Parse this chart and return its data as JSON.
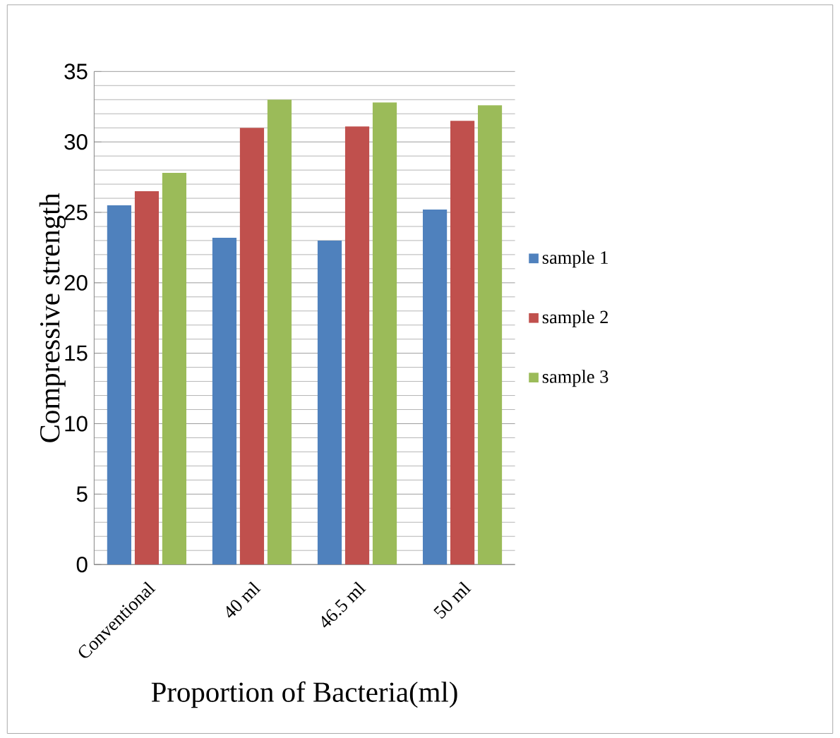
{
  "chart_data": {
    "type": "bar",
    "xlabel": "Proportion of Bacteria(ml)",
    "ylabel": "Compressive strength",
    "categories": [
      "Conventional",
      "40 ml",
      "46.5 ml",
      "50 ml"
    ],
    "series": [
      {
        "name": "sample 1",
        "color": "#4f81bd",
        "values": [
          25.5,
          23.2,
          23.0,
          25.2
        ]
      },
      {
        "name": "sample 2",
        "color": "#c0504d",
        "values": [
          26.5,
          31.0,
          31.1,
          31.5
        ]
      },
      {
        "name": "sample 3",
        "color": "#9bbb59",
        "values": [
          27.8,
          33.0,
          32.8,
          32.6
        ]
      }
    ],
    "ylim": [
      0,
      35
    ],
    "yticks": [
      0,
      5,
      10,
      15,
      20,
      25,
      30,
      35
    ],
    "grid": "y",
    "legend": "right"
  }
}
